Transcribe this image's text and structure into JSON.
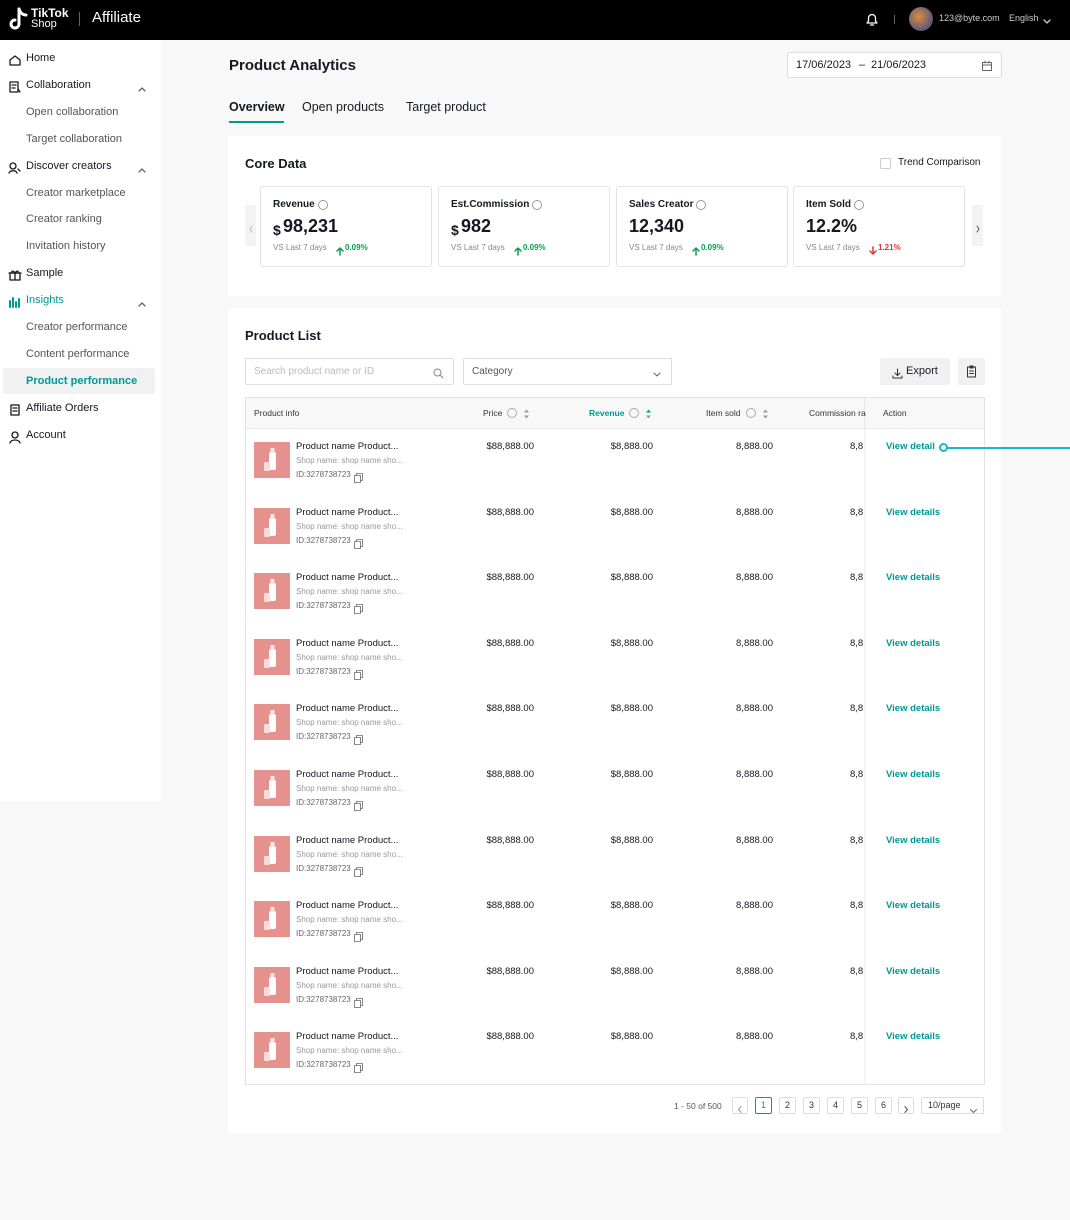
{
  "header": {
    "logo_top": "TikTok",
    "logo_bottom": "Shop",
    "product": "Affiliate",
    "user_email": "123@byte.com",
    "language": "English"
  },
  "sidebar": [
    {
      "label": "Home",
      "icon": "home"
    },
    {
      "label": "Collaboration",
      "icon": "collab",
      "children": [
        {
          "label": "Open collaboration"
        },
        {
          "label": "Target collaboration"
        }
      ]
    },
    {
      "label": "Discover creators",
      "icon": "discover",
      "children": [
        {
          "label": "Creator marketplace"
        },
        {
          "label": "Creator ranking"
        },
        {
          "label": "Invitation history"
        }
      ]
    },
    {
      "label": "Sample",
      "icon": "sample"
    },
    {
      "label": "Insights",
      "icon": "insights",
      "active": true,
      "children": [
        {
          "label": "Creator performance"
        },
        {
          "label": "Content performance"
        },
        {
          "label": "Product performance",
          "active": true
        }
      ]
    },
    {
      "label": "Affiliate Orders",
      "icon": "orders"
    },
    {
      "label": "Account",
      "icon": "account"
    }
  ],
  "page": {
    "title": "Product Analytics",
    "date_start": "17/06/2023",
    "date_separator": "–",
    "date_end": "21/06/2023"
  },
  "tabs": [
    {
      "label": "Overview",
      "active": true
    },
    {
      "label": "Open products"
    },
    {
      "label": "Target product"
    }
  ],
  "core_data": {
    "title": "Core Data",
    "trend_label": "Trend Comparison",
    "cards": [
      {
        "label": "Revenue",
        "currency": "$",
        "value": "98,231",
        "compare": "VS Last 7 days",
        "change": "0.09%",
        "direction": "up"
      },
      {
        "label": "Est.Commission",
        "currency": "$",
        "value": "982",
        "compare": "VS Last 7 days",
        "change": "0.09%",
        "direction": "up"
      },
      {
        "label": "Sales Creator",
        "value": "12,340",
        "compare": "VS Last 7 days",
        "change": "0.09%",
        "direction": "up"
      },
      {
        "label": "Item Sold",
        "value": "12.2%",
        "compare": "VS Last 7 days",
        "change": "1.21%",
        "direction": "down"
      }
    ]
  },
  "product_list": {
    "title": "Product List",
    "search_placeholder": "Search product name or ID",
    "category_placeholder": "Category",
    "export": "Export",
    "columns": [
      "Product info",
      "Price",
      "Revenue",
      "Item sold",
      "Commission ra",
      "Action"
    ],
    "rows": [
      {
        "name": "Product name Product...",
        "shop": "Shop name: shop name sho...",
        "id": "ID:3278738723",
        "price": "$88,888.00",
        "revenue": "$8,888.00",
        "item_sold": "8,888.00",
        "commission": "8,8",
        "action": "View detail"
      },
      {
        "name": "Product name Product...",
        "shop": "Shop name: shop name sho...",
        "id": "ID:3278738723",
        "price": "$88,888.00",
        "revenue": "$8,888.00",
        "item_sold": "8,888.00",
        "commission": "8,8",
        "action": "View details"
      },
      {
        "name": "Product name Product...",
        "shop": "Shop name: shop name sho...",
        "id": "ID:3278738723",
        "price": "$88,888.00",
        "revenue": "$8,888.00",
        "item_sold": "8,888.00",
        "commission": "8,8",
        "action": "View details"
      },
      {
        "name": "Product name Product...",
        "shop": "Shop name: shop name sho...",
        "id": "ID:3278738723",
        "price": "$88,888.00",
        "revenue": "$8,888.00",
        "item_sold": "8,888.00",
        "commission": "8,8",
        "action": "View details"
      },
      {
        "name": "Product name Product...",
        "shop": "Shop name: shop name sho...",
        "id": "ID:3278738723",
        "price": "$88,888.00",
        "revenue": "$8,888.00",
        "item_sold": "8,888.00",
        "commission": "8,8",
        "action": "View details"
      },
      {
        "name": "Product name Product...",
        "shop": "Shop name: shop name sho...",
        "id": "ID:3278738723",
        "price": "$88,888.00",
        "revenue": "$8,888.00",
        "item_sold": "8,888.00",
        "commission": "8,8",
        "action": "View details"
      },
      {
        "name": "Product name Product...",
        "shop": "Shop name: shop name sho...",
        "id": "ID:3278738723",
        "price": "$88,888.00",
        "revenue": "$8,888.00",
        "item_sold": "8,888.00",
        "commission": "8,8",
        "action": "View details"
      },
      {
        "name": "Product name Product...",
        "shop": "Shop name: shop name sho...",
        "id": "ID:3278738723",
        "price": "$88,888.00",
        "revenue": "$8,888.00",
        "item_sold": "8,888.00",
        "commission": "8,8",
        "action": "View details"
      },
      {
        "name": "Product name Product...",
        "shop": "Shop name: shop name sho...",
        "id": "ID:3278738723",
        "price": "$88,888.00",
        "revenue": "$8,888.00",
        "item_sold": "8,888.00",
        "commission": "8,8",
        "action": "View details"
      },
      {
        "name": "Product name Product...",
        "shop": "Shop name: shop name sho...",
        "id": "ID:3278738723",
        "price": "$88,888.00",
        "revenue": "$8,888.00",
        "item_sold": "8,888.00",
        "commission": "8,8",
        "action": "View details"
      }
    ]
  },
  "pagination": {
    "summary": "1 - 50 of 500",
    "pages": [
      "1",
      "2",
      "3",
      "4",
      "5",
      "6"
    ],
    "current": 0,
    "page_size": "10/page"
  }
}
